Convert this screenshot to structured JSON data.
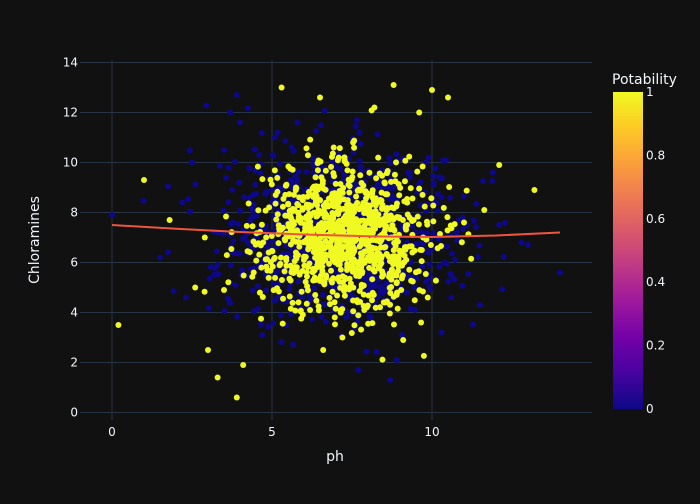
{
  "chart_data": {
    "type": "scatter",
    "xlabel": "ph",
    "ylabel": "Chloramines",
    "xlim": [
      -1,
      15
    ],
    "ylim": [
      -0.3,
      14.1
    ],
    "x_ticks": [
      0,
      5,
      10
    ],
    "y_ticks": [
      0,
      2,
      4,
      6,
      8,
      10,
      12,
      14
    ],
    "grid": true,
    "background": "#111111",
    "colorbar": {
      "title": "Potability",
      "range": [
        0,
        1
      ],
      "ticks": [
        0,
        0.2,
        0.4,
        0.6,
        0.8,
        1
      ],
      "colorscale": [
        "#0d0887",
        "#46039f",
        "#7201a8",
        "#9c179e",
        "#bd3786",
        "#d8576b",
        "#ed7953",
        "#fb9f3a",
        "#fdca26",
        "#f0f921"
      ]
    },
    "series": [
      {
        "name": "0",
        "marker_color": "#0d0887",
        "sample_points": [
          [
            0,
            7.9
          ],
          [
            3.9,
            12.7
          ],
          [
            3.7,
            12.0
          ],
          [
            4.0,
            11.6
          ],
          [
            3.5,
            10.5
          ],
          [
            2.5,
            10.0
          ],
          [
            7.7,
            1.7
          ],
          [
            8.9,
            2.1
          ],
          [
            14.0,
            5.6
          ],
          [
            12.8,
            6.8
          ],
          [
            13.0,
            6.7
          ],
          [
            11.9,
            9.6
          ],
          [
            1.5,
            6.2
          ],
          [
            2.2,
            8.4
          ],
          [
            12.1,
            7.5
          ],
          [
            11.5,
            4.3
          ],
          [
            3.3,
            5.9
          ],
          [
            4.6,
            10.3
          ],
          [
            10.3,
            3.2
          ],
          [
            9.9,
            10.2
          ],
          [
            4.7,
            3.1
          ],
          [
            10.6,
            4.6
          ]
        ]
      },
      {
        "name": "1",
        "marker_color": "#f0f921",
        "sample_points": [
          [
            0.2,
            3.5
          ],
          [
            1.0,
            9.3
          ],
          [
            1.8,
            7.7
          ],
          [
            2.6,
            5.0
          ],
          [
            3.0,
            2.5
          ],
          [
            3.3,
            1.4
          ],
          [
            3.9,
            0.6
          ],
          [
            4.1,
            1.9
          ],
          [
            5.3,
            13.0
          ],
          [
            6.5,
            12.6
          ],
          [
            8.8,
            13.1
          ],
          [
            10.0,
            12.9
          ],
          [
            10.5,
            12.6
          ],
          [
            9.6,
            12.0
          ],
          [
            8.2,
            12.2
          ],
          [
            12.1,
            9.9
          ],
          [
            13.2,
            8.9
          ],
          [
            11.0,
            7.6
          ],
          [
            3.5,
            4.9
          ],
          [
            2.9,
            7.0
          ],
          [
            6.6,
            2.5
          ],
          [
            7.2,
            3.0
          ],
          [
            9.1,
            2.9
          ]
        ]
      }
    ],
    "trendline": {
      "color": "#ef553b",
      "points": [
        [
          0,
          7.5
        ],
        [
          2,
          7.35
        ],
        [
          4,
          7.22
        ],
        [
          6,
          7.12
        ],
        [
          8,
          7.05
        ],
        [
          10,
          7.02
        ],
        [
          12,
          7.08
        ],
        [
          14,
          7.2
        ]
      ]
    },
    "points_drawn": 2000
  }
}
